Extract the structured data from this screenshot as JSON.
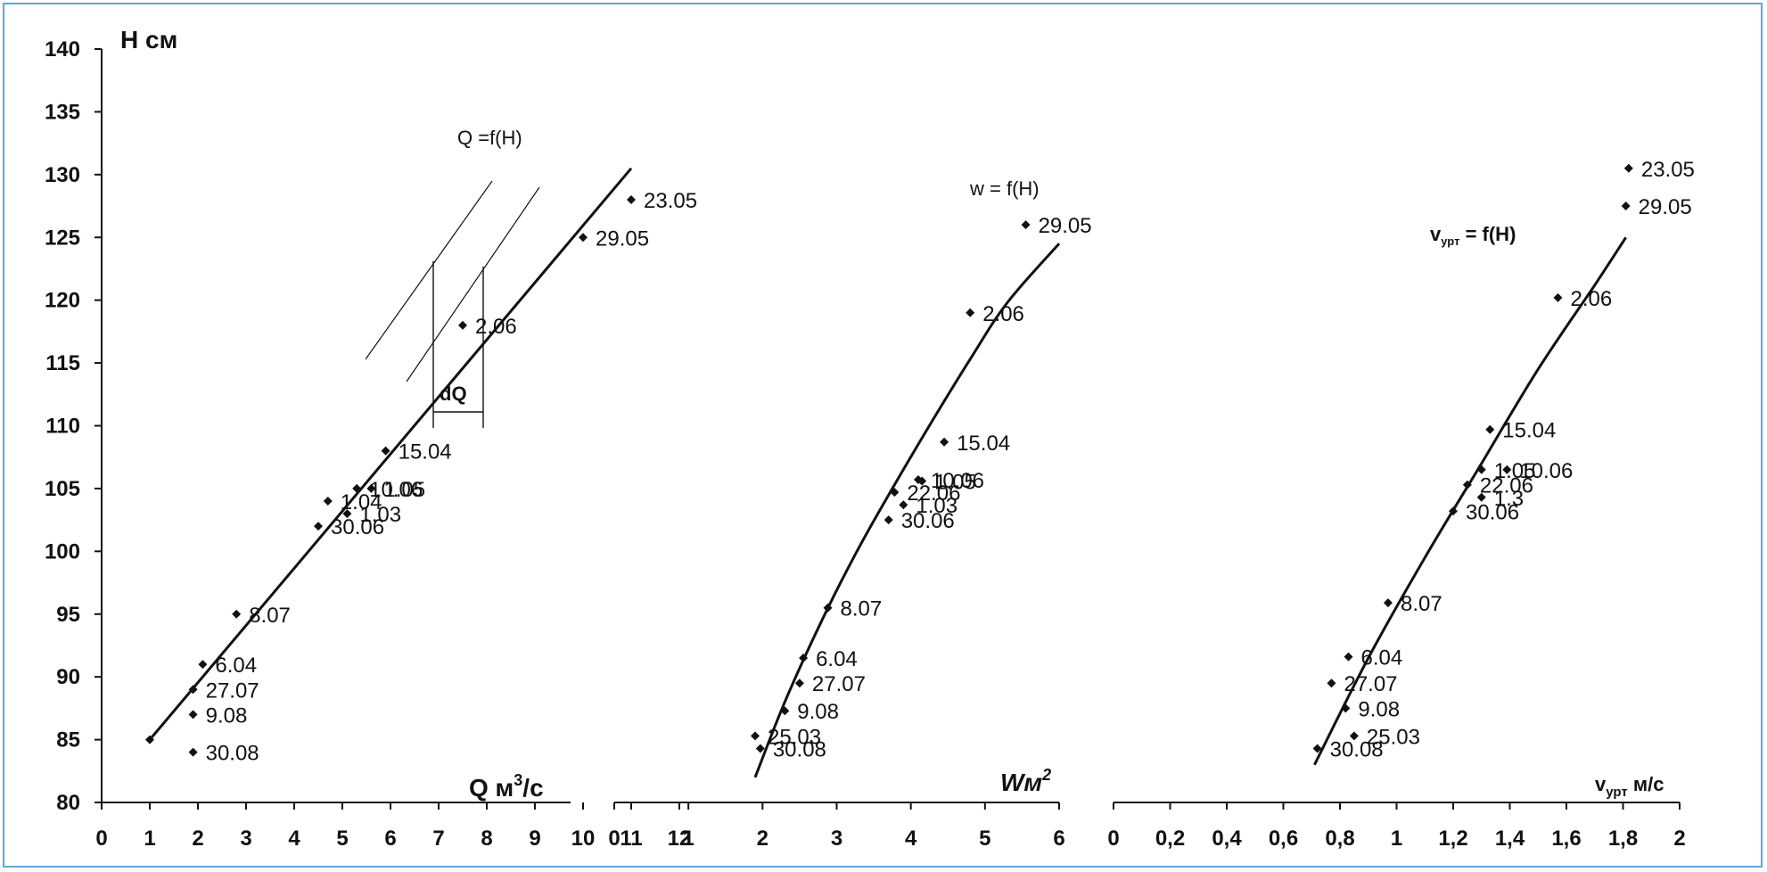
{
  "chart_data": [
    {
      "type": "scatter",
      "ylabel": "H см",
      "xlabel": "Q м³/с",
      "xlabel_main": "Q м",
      "xlabel_sup": "3",
      "xlabel_tail": "/с",
      "curve_label": "Q =f(H)",
      "annotation": "dQ",
      "x_ticks": [
        "0",
        "1",
        "2",
        "3",
        "4",
        "5",
        "6",
        "7",
        "8",
        "9",
        "10",
        "11",
        "12"
      ],
      "y_ticks": [
        "80",
        "85",
        "90",
        "95",
        "100",
        "105",
        "110",
        "115",
        "120",
        "125",
        "130",
        "135",
        "140"
      ],
      "xlim": [
        0,
        12
      ],
      "ylim": [
        80,
        140
      ],
      "points": [
        {
          "label": "23.05",
          "x": 11.0,
          "y": 128.0
        },
        {
          "label": "29.05",
          "x": 10.0,
          "y": 125.0
        },
        {
          "label": "2.06",
          "x": 7.5,
          "y": 118.0
        },
        {
          "label": "15.04",
          "x": 5.9,
          "y": 108.0
        },
        {
          "label": "10.06",
          "x": 5.3,
          "y": 105.0
        },
        {
          "label": "1.05",
          "x": 5.6,
          "y": 105.0
        },
        {
          "label": "1.04",
          "x": 4.7,
          "y": 104.0
        },
        {
          "label": "1.03",
          "x": 5.1,
          "y": 103.0
        },
        {
          "label": "30.06",
          "x": 4.5,
          "y": 102.0
        },
        {
          "label": "8.07",
          "x": 2.8,
          "y": 95.0
        },
        {
          "label": "6.04",
          "x": 2.1,
          "y": 91.0
        },
        {
          "label": "27.07",
          "x": 1.9,
          "y": 89.0
        },
        {
          "label": "9.08",
          "x": 1.9,
          "y": 87.0
        },
        {
          "label": "30.08",
          "x": 1.9,
          "y": 84.0
        },
        {
          "label": "",
          "x": 1.0,
          "y": 85.0
        }
      ],
      "fit_line": {
        "x": [
          1.0,
          11.0
        ],
        "y": [
          85.0,
          130.5
        ]
      }
    },
    {
      "type": "scatter",
      "xlabel": "Wм²",
      "xlabel_main": "Wм",
      "xlabel_sup": "2",
      "curve_label": "w = f(H)",
      "x_ticks": [
        "0",
        "1",
        "2",
        "3",
        "4",
        "5",
        "6"
      ],
      "xlim": [
        0,
        6
      ],
      "ylim": [
        80,
        140
      ],
      "points": [
        {
          "label": "29.05",
          "x": 5.55,
          "y": 126.0
        },
        {
          "label": "2.06",
          "x": 4.8,
          "y": 119.0
        },
        {
          "label": "15.04",
          "x": 4.45,
          "y": 108.7
        },
        {
          "label": "10.06",
          "x": 4.1,
          "y": 105.7
        },
        {
          "label": "1.05",
          "x": 4.15,
          "y": 105.6
        },
        {
          "label": "22.06",
          "x": 3.78,
          "y": 104.7
        },
        {
          "label": "1.03",
          "x": 3.9,
          "y": 103.7
        },
        {
          "label": "30.06",
          "x": 3.7,
          "y": 102.5
        },
        {
          "label": "8.07",
          "x": 2.88,
          "y": 95.5
        },
        {
          "label": "6.04",
          "x": 2.55,
          "y": 91.5
        },
        {
          "label": "27.07",
          "x": 2.5,
          "y": 89.5
        },
        {
          "label": "9.08",
          "x": 2.3,
          "y": 87.3
        },
        {
          "label": "25.03",
          "x": 1.9,
          "y": 85.3
        },
        {
          "label": "30.08",
          "x": 1.97,
          "y": 84.3
        }
      ],
      "fit_curve": {
        "x": [
          1.9,
          2.3,
          2.8,
          3.3,
          3.8,
          4.3,
          4.8,
          5.3,
          6.0
        ],
        "y": [
          82.0,
          88.0,
          94.5,
          100.3,
          105.5,
          110.5,
          115.3,
          119.8,
          124.5
        ]
      }
    },
    {
      "type": "scatter",
      "xlabel": "vурт м/с",
      "xlabel_main": "v",
      "xlabel_sub": "урт",
      "xlabel_tail": " м/с",
      "curve_label": "vурт = f(H)",
      "curve_label_main": "v",
      "curve_label_sub": "урт",
      "curve_label_tail": " = f(H)",
      "x_ticks": [
        "0",
        "0,2",
        "0,4",
        "0,6",
        "0,8",
        "1",
        "1,2",
        "1,4",
        "1,6",
        "1,8",
        "2"
      ],
      "xlim": [
        0,
        2
      ],
      "ylim": [
        80,
        140
      ],
      "points": [
        {
          "label": "23.05",
          "x": 1.82,
          "y": 130.5
        },
        {
          "label": "29.05",
          "x": 1.81,
          "y": 127.5
        },
        {
          "label": "2.06",
          "x": 1.57,
          "y": 120.2
        },
        {
          "label": "15.04",
          "x": 1.33,
          "y": 109.7
        },
        {
          "label": "10.06",
          "x": 1.39,
          "y": 106.5
        },
        {
          "label": "1.05",
          "x": 1.3,
          "y": 106.5
        },
        {
          "label": "22.06",
          "x": 1.25,
          "y": 105.3
        },
        {
          "label": "1.3",
          "x": 1.3,
          "y": 104.3
        },
        {
          "label": "30.06",
          "x": 1.2,
          "y": 103.2
        },
        {
          "label": "8.07",
          "x": 0.97,
          "y": 95.9
        },
        {
          "label": "6.04",
          "x": 0.83,
          "y": 91.6
        },
        {
          "label": "27.07",
          "x": 0.77,
          "y": 89.5
        },
        {
          "label": "9.08",
          "x": 0.82,
          "y": 87.5
        },
        {
          "label": "25.03",
          "x": 0.85,
          "y": 85.3
        },
        {
          "label": "30.08",
          "x": 0.72,
          "y": 84.3
        }
      ],
      "fit_curve": {
        "x": [
          0.71,
          0.9,
          1.1,
          1.3,
          1.5,
          1.7,
          1.81
        ],
        "y": [
          83.0,
          91.5,
          99.5,
          107.0,
          114.5,
          121.2,
          125.0
        ]
      }
    }
  ]
}
